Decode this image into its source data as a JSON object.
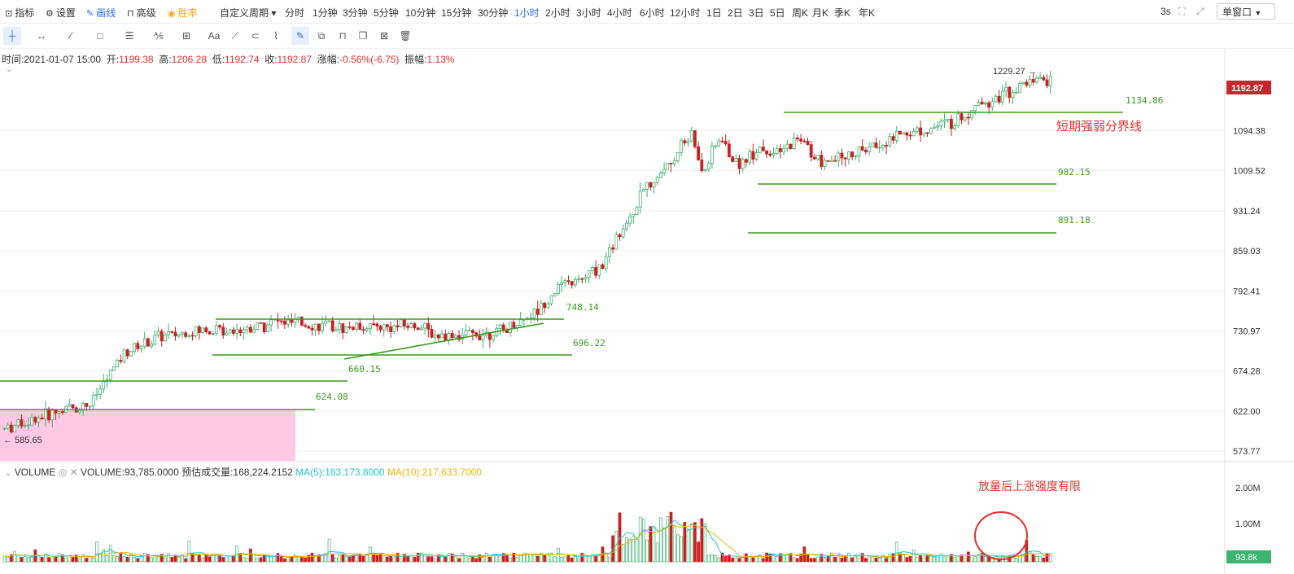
{
  "toolbar": {
    "left_items": [
      {
        "icon": "chart-icon",
        "glyph": "⊡",
        "label": "指标"
      },
      {
        "icon": "gear-icon",
        "glyph": "⚙",
        "label": "设置"
      },
      {
        "icon": "pen-icon",
        "glyph": "✎",
        "label": "画线",
        "active": true
      },
      {
        "icon": "lock-icon",
        "glyph": "⊓",
        "label": "高级"
      },
      {
        "icon": "coin-icon",
        "glyph": "◉",
        "label": "胜率",
        "color": "#f5a623"
      }
    ],
    "custom_period": "自定义周期",
    "periods": [
      "分时",
      "1分钟",
      "3分钟",
      "5分钟",
      "10分钟",
      "15分钟",
      "30分钟",
      "1小时",
      "2小时",
      "3小时",
      "4小时",
      "6小时",
      "12小时",
      "1日",
      "2日",
      "3日",
      "5日",
      "周K",
      "月K",
      "季K",
      "年K"
    ],
    "active_period": "1小时",
    "refresh": "3s",
    "window_mode": "单窗口"
  },
  "info": {
    "time_label": "时间:",
    "time": "2021-01-07 15:00",
    "open_label": "开:",
    "open": "1199.38",
    "high_label": "高:",
    "high": "1206.28",
    "low_label": "低:",
    "low": "1192.74",
    "close_label": "收:",
    "close": "1192.87",
    "change_label": "涨幅:",
    "change": "-0.56%(-6.75)",
    "amp_label": "振幅:",
    "amp": "1.13%"
  },
  "volume_info": {
    "name": "VOLUME",
    "value": "VOLUME:93,785.0000",
    "est": "预估成交量:168,224.2152",
    "ma5": "MA(5):183,173.8000",
    "ma10": "MA(10):217,633.7000"
  },
  "colors": {
    "up": "#3cb371",
    "down": "#cc1f1f",
    "line": "#3a9a1a",
    "ma5": "#23c6c8",
    "ma10": "#f5b400",
    "accent": "#2b6de6",
    "price_tag": "#c4282c"
  },
  "chart_data": {
    "type": "candlestick",
    "ylim": [
      560,
      1240
    ],
    "price_ticks": [
      "1094.38",
      "1009.52",
      "931.24",
      "859.03",
      "792.41",
      "730.97",
      "674.28",
      "622.00",
      "573.77"
    ],
    "current_price": "1192.87",
    "high_marker": "1229.27",
    "low_marker": "585.65",
    "levels": [
      {
        "price": 1134.86,
        "label": "1134.86"
      },
      {
        "price": 982.15,
        "label": "982.15"
      },
      {
        "price": 891.18,
        "label": "891.18"
      },
      {
        "price": 748.14,
        "label": "748.14"
      },
      {
        "price": 696.22,
        "label": "696.22"
      },
      {
        "price": 660.15,
        "label": "660.15"
      },
      {
        "price": 624.08,
        "label": "624.08"
      }
    ],
    "annotations": [
      "短期强弱分界线",
      "放量后上涨强度有限"
    ],
    "volume_ticks": [
      "2.00M",
      "1.00M"
    ],
    "current_volume": "93.8k",
    "trend_path": [
      [
        585,
        600
      ],
      [
        640,
        625
      ],
      [
        660,
        630
      ],
      [
        690,
        700
      ],
      [
        720,
        722
      ],
      [
        760,
        732
      ],
      [
        800,
        735
      ],
      [
        820,
        745
      ],
      [
        850,
        740
      ],
      [
        880,
        735
      ],
      [
        900,
        738
      ],
      [
        920,
        736
      ],
      [
        945,
        740
      ],
      [
        960,
        725
      ],
      [
        990,
        725
      ],
      [
        1020,
        730
      ],
      [
        1050,
        760
      ],
      [
        1070,
        800
      ],
      [
        1090,
        810
      ],
      [
        1110,
        840
      ],
      [
        1125,
        900
      ],
      [
        1145,
        970
      ],
      [
        1160,
        1010
      ],
      [
        1175,
        1060
      ],
      [
        1185,
        1090
      ],
      [
        1195,
        1000
      ],
      [
        1210,
        1080
      ],
      [
        1225,
        1020
      ],
      [
        1245,
        1060
      ],
      [
        1260,
        1040
      ],
      [
        1280,
        1080
      ],
      [
        1300,
        1020
      ],
      [
        1320,
        1040
      ],
      [
        1345,
        1060
      ],
      [
        1370,
        1090
      ],
      [
        1395,
        1100
      ],
      [
        1420,
        1120
      ],
      [
        1440,
        1160
      ],
      [
        1460,
        1180
      ],
      [
        1480,
        1205
      ],
      [
        1500,
        1210
      ]
    ]
  }
}
